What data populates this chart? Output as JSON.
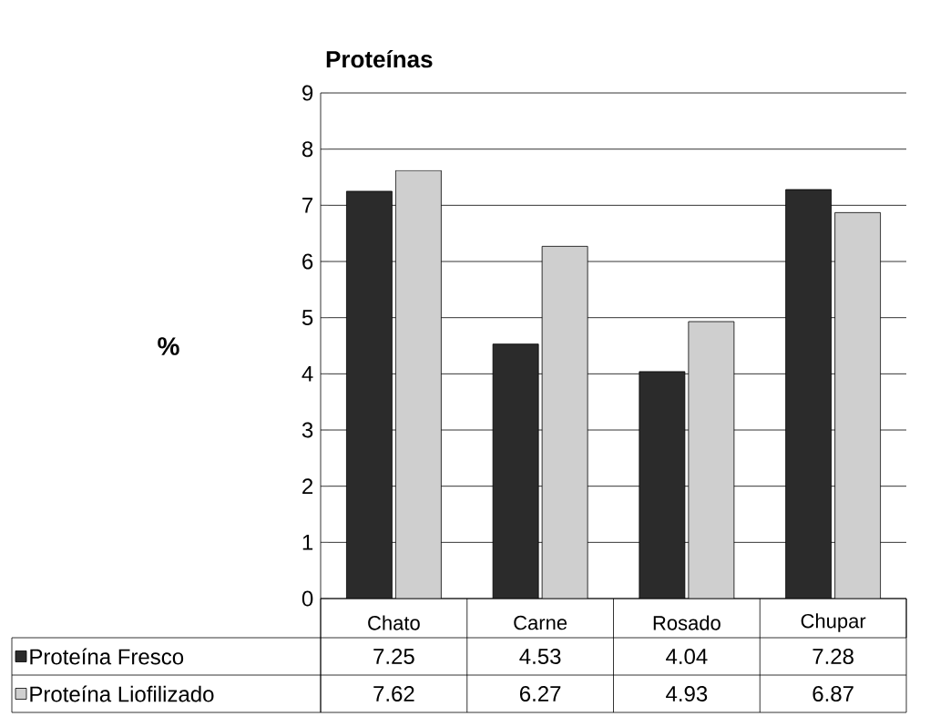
{
  "chart_data": {
    "type": "bar",
    "title": "Proteínas",
    "ylabel": "%",
    "categories": [
      "Chato",
      "Carne",
      "Rosado",
      "Chupar"
    ],
    "series": [
      {
        "name": "Proteína Fresco",
        "color": "#2b2b2b",
        "values": [
          7.25,
          4.53,
          4.04,
          7.28
        ]
      },
      {
        "name": "Proteína Liofilizado",
        "color": "#cfcfcf",
        "values": [
          7.62,
          6.27,
          4.93,
          6.87
        ]
      }
    ],
    "ylim": [
      0,
      9
    ],
    "yticks": [
      0,
      1,
      2,
      3,
      4,
      5,
      6,
      7,
      8,
      9
    ],
    "grid": "y",
    "legend": "bottom",
    "data_labels": true
  }
}
